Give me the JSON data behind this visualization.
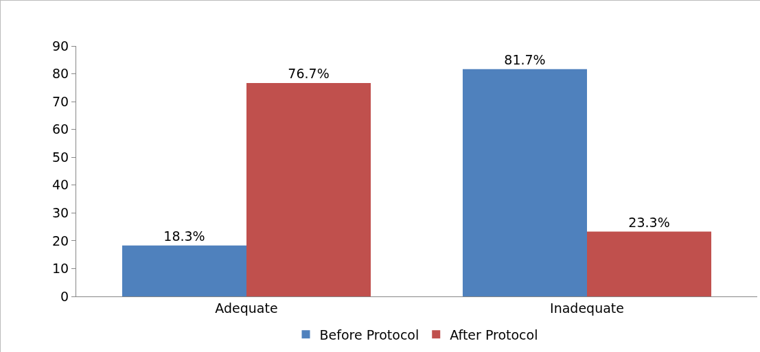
{
  "chart_data": {
    "type": "bar",
    "categories": [
      "Adequate",
      "Inadequate"
    ],
    "series": [
      {
        "name": "Before Protocol",
        "color": "#4f81bd",
        "values": [
          18.3,
          81.7
        ],
        "value_labels": [
          "18.3%",
          "81.7%"
        ]
      },
      {
        "name": "After Protocol",
        "color": "#c0504d",
        "values": [
          76.7,
          23.3
        ],
        "value_labels": [
          "76.7%",
          "23.3%"
        ]
      }
    ],
    "ylim": [
      0,
      90
    ],
    "yticks": [
      0,
      10,
      20,
      30,
      40,
      50,
      60,
      70,
      80,
      90
    ],
    "grid": false,
    "legend": "bottom"
  }
}
